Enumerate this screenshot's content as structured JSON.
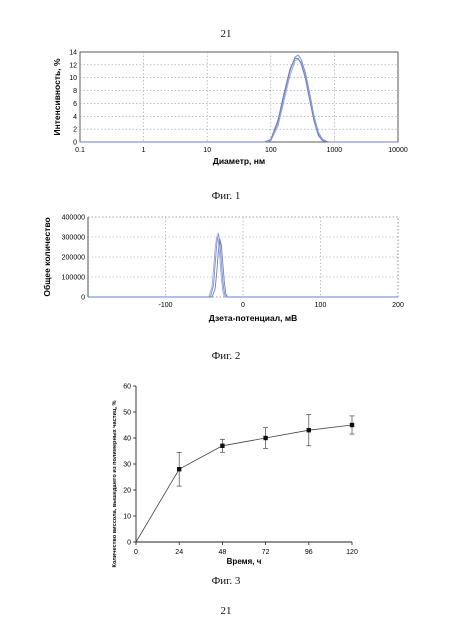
{
  "page": {
    "number_top": "21",
    "number_bottom": "21"
  },
  "figures": [
    {
      "caption": "Фиг. 1"
    },
    {
      "caption": "Фиг. 2"
    },
    {
      "caption": "Фиг. 3"
    }
  ],
  "chart_data": [
    {
      "type": "line",
      "xlabel": "Диаметр, нм",
      "ylabel": "Интенсивность, %",
      "x_scale": "log",
      "xlim": [
        0.1,
        10000
      ],
      "ylim": [
        0,
        14
      ],
      "x_ticks": [
        "0.1",
        "1",
        "10",
        "100",
        "1000",
        "10000"
      ],
      "y_ticks": [
        "0",
        "2",
        "4",
        "6",
        "8",
        "10",
        "12",
        "14"
      ],
      "grid": true,
      "colors": [
        "#7a8fd0",
        "#9aa6dc",
        "#6f7fc0"
      ],
      "series": [
        {
          "x": [
            0.1,
            80,
            100,
            130,
            160,
            200,
            240,
            270,
            300,
            350,
            400,
            480,
            560,
            650,
            800,
            10000
          ],
          "y": [
            0,
            0,
            0.3,
            3.0,
            7.0,
            11.0,
            13.2,
            13.5,
            12.9,
            10.8,
            8.0,
            4.0,
            1.5,
            0.4,
            0,
            0
          ]
        },
        {
          "x": [
            0.1,
            80,
            100,
            130,
            160,
            200,
            240,
            270,
            300,
            350,
            400,
            480,
            560,
            650,
            800,
            10000
          ],
          "y": [
            0,
            0,
            0.2,
            2.5,
            6.3,
            10.3,
            12.6,
            12.9,
            12.4,
            10.2,
            7.4,
            3.6,
            1.2,
            0.3,
            0,
            0
          ]
        },
        {
          "x": [
            0.1,
            80,
            100,
            130,
            160,
            200,
            240,
            270,
            300,
            350,
            400,
            480,
            560,
            650,
            800,
            10000
          ],
          "y": [
            0,
            0,
            0.4,
            3.4,
            7.4,
            11.3,
            13.0,
            13.0,
            12.2,
            9.9,
            7.0,
            3.2,
            1.0,
            0.2,
            0,
            0
          ]
        }
      ]
    },
    {
      "type": "line",
      "xlabel": "Дзета-потенциал, мВ",
      "ylabel": "Общее количество",
      "xlim": [
        -200,
        200
      ],
      "ylim": [
        0,
        400000
      ],
      "x_ticks": [
        "-100",
        "0",
        "100",
        "200"
      ],
      "y_ticks": [
        "0",
        "100000",
        "200000",
        "300000",
        "400000"
      ],
      "grid": true,
      "colors": [
        "#7a8fd0",
        "#9aa6dc",
        "#6f7fc0"
      ],
      "series": [
        {
          "x": [
            -200,
            -42,
            -38,
            -36,
            -34,
            -32,
            -30,
            -28,
            -26,
            -24,
            -22,
            200
          ],
          "y": [
            0,
            0,
            60000,
            160000,
            260000,
            320000,
            280000,
            180000,
            80000,
            20000,
            0,
            0
          ]
        },
        {
          "x": [
            -200,
            -44,
            -40,
            -38,
            -36,
            -34,
            -32,
            -30,
            -28,
            -26,
            -24,
            200
          ],
          "y": [
            0,
            0,
            50000,
            140000,
            240000,
            300000,
            290000,
            200000,
            100000,
            30000,
            0,
            0
          ]
        },
        {
          "x": [
            -200,
            -40,
            -36,
            -34,
            -32,
            -30,
            -28,
            -26,
            -24,
            -22,
            -20,
            200
          ],
          "y": [
            0,
            0,
            40000,
            120000,
            220000,
            290000,
            260000,
            170000,
            70000,
            15000,
            0,
            0
          ]
        }
      ]
    },
    {
      "type": "line",
      "xlabel": "Время, ч",
      "ylabel": "Количество виссола, вышедшего из полимерных частиц, %",
      "xlim": [
        0,
        120
      ],
      "ylim": [
        0,
        60
      ],
      "x_ticks": [
        "0",
        "24",
        "48",
        "72",
        "96",
        "120"
      ],
      "y_ticks": [
        "0",
        "10",
        "20",
        "30",
        "40",
        "50",
        "60"
      ],
      "grid": false,
      "colors": [
        "#222222"
      ],
      "series": [
        {
          "x": [
            0,
            24,
            48,
            72,
            96,
            120
          ],
          "y": [
            0,
            28,
            37,
            40,
            43,
            45
          ],
          "error": [
            0,
            6.5,
            2.5,
            4.0,
            6.0,
            3.5
          ]
        }
      ]
    }
  ]
}
